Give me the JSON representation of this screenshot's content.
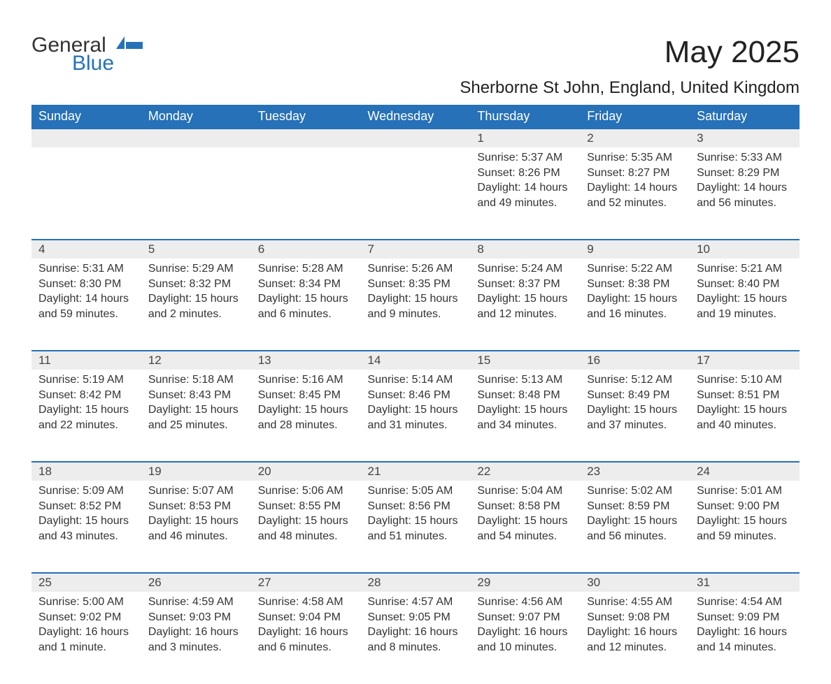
{
  "logo": {
    "general": "General",
    "blue": "Blue"
  },
  "title": "May 2025",
  "subtitle": "Sherborne St John, England, United Kingdom",
  "colors": {
    "header_bg": "#2671b8",
    "header_text": "#ffffff",
    "daynum_bg": "#ededed",
    "daynum_border_top": "#2671b8",
    "body_bg": "#ffffff",
    "text": "#333333",
    "logo_blue": "#2671b8"
  },
  "day_headers": [
    "Sunday",
    "Monday",
    "Tuesday",
    "Wednesday",
    "Thursday",
    "Friday",
    "Saturday"
  ],
  "weeks": [
    [
      null,
      null,
      null,
      null,
      {
        "n": "1",
        "sunrise": "5:37 AM",
        "sunset": "8:26 PM",
        "daylight": "14 hours and 49 minutes."
      },
      {
        "n": "2",
        "sunrise": "5:35 AM",
        "sunset": "8:27 PM",
        "daylight": "14 hours and 52 minutes."
      },
      {
        "n": "3",
        "sunrise": "5:33 AM",
        "sunset": "8:29 PM",
        "daylight": "14 hours and 56 minutes."
      }
    ],
    [
      {
        "n": "4",
        "sunrise": "5:31 AM",
        "sunset": "8:30 PM",
        "daylight": "14 hours and 59 minutes."
      },
      {
        "n": "5",
        "sunrise": "5:29 AM",
        "sunset": "8:32 PM",
        "daylight": "15 hours and 2 minutes."
      },
      {
        "n": "6",
        "sunrise": "5:28 AM",
        "sunset": "8:34 PM",
        "daylight": "15 hours and 6 minutes."
      },
      {
        "n": "7",
        "sunrise": "5:26 AM",
        "sunset": "8:35 PM",
        "daylight": "15 hours and 9 minutes."
      },
      {
        "n": "8",
        "sunrise": "5:24 AM",
        "sunset": "8:37 PM",
        "daylight": "15 hours and 12 minutes."
      },
      {
        "n": "9",
        "sunrise": "5:22 AM",
        "sunset": "8:38 PM",
        "daylight": "15 hours and 16 minutes."
      },
      {
        "n": "10",
        "sunrise": "5:21 AM",
        "sunset": "8:40 PM",
        "daylight": "15 hours and 19 minutes."
      }
    ],
    [
      {
        "n": "11",
        "sunrise": "5:19 AM",
        "sunset": "8:42 PM",
        "daylight": "15 hours and 22 minutes."
      },
      {
        "n": "12",
        "sunrise": "5:18 AM",
        "sunset": "8:43 PM",
        "daylight": "15 hours and 25 minutes."
      },
      {
        "n": "13",
        "sunrise": "5:16 AM",
        "sunset": "8:45 PM",
        "daylight": "15 hours and 28 minutes."
      },
      {
        "n": "14",
        "sunrise": "5:14 AM",
        "sunset": "8:46 PM",
        "daylight": "15 hours and 31 minutes."
      },
      {
        "n": "15",
        "sunrise": "5:13 AM",
        "sunset": "8:48 PM",
        "daylight": "15 hours and 34 minutes."
      },
      {
        "n": "16",
        "sunrise": "5:12 AM",
        "sunset": "8:49 PM",
        "daylight": "15 hours and 37 minutes."
      },
      {
        "n": "17",
        "sunrise": "5:10 AM",
        "sunset": "8:51 PM",
        "daylight": "15 hours and 40 minutes."
      }
    ],
    [
      {
        "n": "18",
        "sunrise": "5:09 AM",
        "sunset": "8:52 PM",
        "daylight": "15 hours and 43 minutes."
      },
      {
        "n": "19",
        "sunrise": "5:07 AM",
        "sunset": "8:53 PM",
        "daylight": "15 hours and 46 minutes."
      },
      {
        "n": "20",
        "sunrise": "5:06 AM",
        "sunset": "8:55 PM",
        "daylight": "15 hours and 48 minutes."
      },
      {
        "n": "21",
        "sunrise": "5:05 AM",
        "sunset": "8:56 PM",
        "daylight": "15 hours and 51 minutes."
      },
      {
        "n": "22",
        "sunrise": "5:04 AM",
        "sunset": "8:58 PM",
        "daylight": "15 hours and 54 minutes."
      },
      {
        "n": "23",
        "sunrise": "5:02 AM",
        "sunset": "8:59 PM",
        "daylight": "15 hours and 56 minutes."
      },
      {
        "n": "24",
        "sunrise": "5:01 AM",
        "sunset": "9:00 PM",
        "daylight": "15 hours and 59 minutes."
      }
    ],
    [
      {
        "n": "25",
        "sunrise": "5:00 AM",
        "sunset": "9:02 PM",
        "daylight": "16 hours and 1 minute."
      },
      {
        "n": "26",
        "sunrise": "4:59 AM",
        "sunset": "9:03 PM",
        "daylight": "16 hours and 3 minutes."
      },
      {
        "n": "27",
        "sunrise": "4:58 AM",
        "sunset": "9:04 PM",
        "daylight": "16 hours and 6 minutes."
      },
      {
        "n": "28",
        "sunrise": "4:57 AM",
        "sunset": "9:05 PM",
        "daylight": "16 hours and 8 minutes."
      },
      {
        "n": "29",
        "sunrise": "4:56 AM",
        "sunset": "9:07 PM",
        "daylight": "16 hours and 10 minutes."
      },
      {
        "n": "30",
        "sunrise": "4:55 AM",
        "sunset": "9:08 PM",
        "daylight": "16 hours and 12 minutes."
      },
      {
        "n": "31",
        "sunrise": "4:54 AM",
        "sunset": "9:09 PM",
        "daylight": "16 hours and 14 minutes."
      }
    ]
  ],
  "labels": {
    "sunrise": "Sunrise: ",
    "sunset": "Sunset: ",
    "daylight": "Daylight: "
  }
}
